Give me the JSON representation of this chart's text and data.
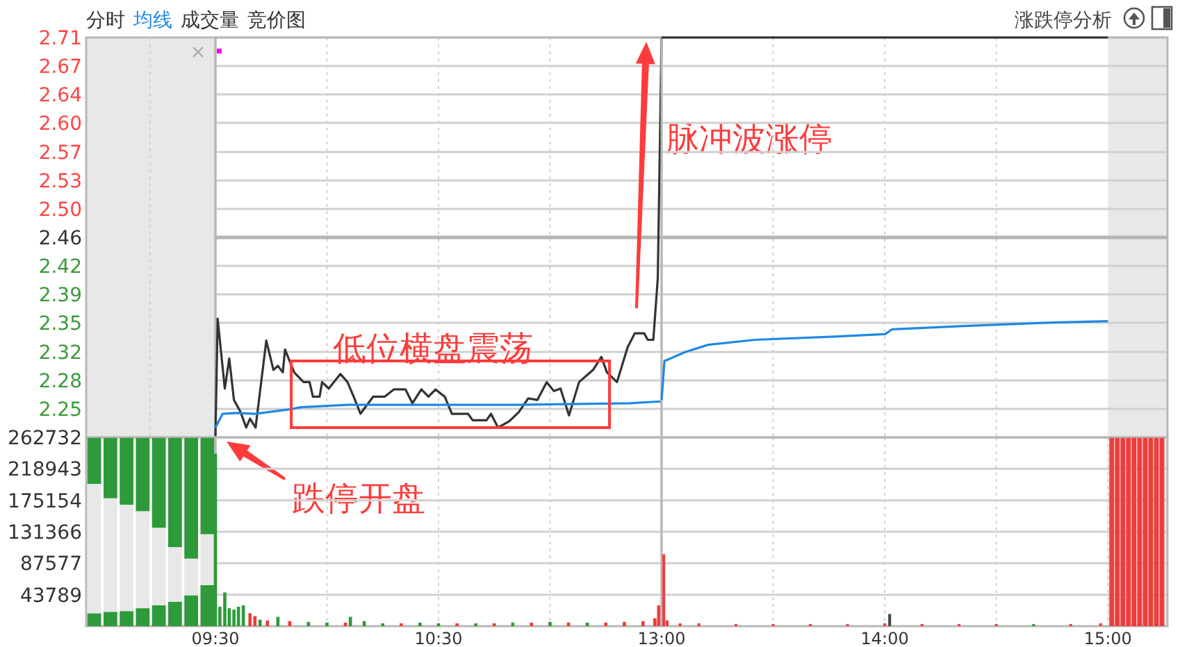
{
  "chart_data": [
    {
      "type": "line",
      "xlim": [
        9.5,
        11.5
      ],
      "ylim": [
        2.214,
        2.706
      ],
      "xticks": [
        {
          "value": 10,
          "label": null
        },
        {
          "value": 10.5,
          "label": null
        },
        {
          "value": 11,
          "label": null
        }
      ],
      "yticks": [
        {
          "value": 2.706,
          "label": "2.71"
        },
        {
          "value": 2.671,
          "label": "2.67"
        },
        {
          "value": 2.636,
          "label": "2.64"
        },
        {
          "value": 2.601,
          "label": "2.60"
        },
        {
          "value": 2.565,
          "label": "2.57"
        },
        {
          "value": 2.53,
          "label": "2.53"
        },
        {
          "value": 2.495,
          "label": "2.50"
        },
        2.46,
        {
          "value": 2.425,
          "label": "2.42"
        },
        2.39,
        {
          "value": 2.355,
          "label": "2.35"
        },
        {
          "value": 2.319,
          "label": "2.32"
        },
        {
          "value": 2.284,
          "label": "2.28"
        },
        {
          "value": 2.249,
          "label": "2.25"
        }
      ],
      "grid": true,
      "tick_labels": "y",
      "ref_lines": [
        {
          "axis": "y",
          "value": 2.46,
          "color": "#b4b4b4"
        }
      ],
      "series": [
        {
          "color": "#333333",
          "x": [
            9.5,
            9.51,
            9.542,
            9.562,
            9.583,
            9.613,
            9.638,
            9.655,
            9.68,
            9.728,
            9.76,
            9.78,
            9.802,
            9.812,
            9.853,
            9.895,
            9.922,
            9.937,
            9.967,
            9.978,
            10.008,
            10.06,
            10.092,
            10.123,
            10.15,
            10.207,
            10.258,
            10.3,
            10.352,
            10.383,
            10.423,
            10.455,
            10.487,
            10.528,
            10.56,
            10.632,
            10.653,
            10.715,
            10.735,
            10.767,
            10.818,
            10.86,
            10.902,
            10.943,
            10.985,
            11.017,
            11.047,
            11.085,
            11.13,
            11.193,
            11.23,
            11.255,
            11.3,
            11.348,
            11.38,
            11.422,
            11.438,
            11.463,
            11.483,
            11.5
          ],
          "values": [
            2.214,
            2.36,
            2.274,
            2.311,
            2.26,
            2.245,
            2.226,
            2.237,
            2.226,
            2.333,
            2.297,
            2.302,
            2.294,
            2.322,
            2.294,
            2.282,
            2.282,
            2.264,
            2.264,
            2.282,
            2.274,
            2.292,
            2.282,
            2.262,
            2.243,
            2.264,
            2.264,
            2.273,
            2.273,
            2.256,
            2.273,
            2.264,
            2.273,
            2.264,
            2.243,
            2.243,
            2.235,
            2.235,
            2.243,
            2.226,
            2.234,
            2.245,
            2.262,
            2.26,
            2.282,
            2.271,
            2.274,
            2.241,
            2.282,
            2.297,
            2.313,
            2.294,
            2.282,
            2.325,
            2.342,
            2.342,
            2.334,
            2.334,
            2.41,
            2.706
          ]
        },
        {
          "color": "#1e88e5",
          "x": [
            9.5,
            9.532,
            9.593,
            9.677,
            9.822,
            9.883,
            10.092,
            10.86,
            11.358,
            11.483,
            11.5
          ],
          "values": [
            2.226,
            2.243,
            2.244,
            2.243,
            2.248,
            2.251,
            2.254,
            2.254,
            2.256,
            2.258,
            2.258
          ]
        }
      ],
      "annotations": [
        "分时",
        "均线",
        "成交量",
        "竞价图",
        "涨跌停分析",
        {
          "text": "低位横盘震荡",
          "x": 10.55,
          "y": 2.267
        },
        {
          "text": "跌停开盘",
          "x": 9.5,
          "y": 2.214
        },
        {
          "text": "脉冲波涨停",
          "x": 11.5,
          "y": 2.706
        }
      ]
    },
    {
      "type": "line",
      "xlim": [
        13,
        15.267
      ],
      "ylim": [
        2.214,
        2.706
      ],
      "xticks": [
        {
          "value": 13.5,
          "label": null
        },
        {
          "value": 14,
          "label": null
        },
        {
          "value": 14.5,
          "label": null
        }
      ],
      "yticks": [
        2.706,
        2.671,
        2.636,
        2.601,
        2.565,
        2.53,
        2.495,
        2.46,
        2.425,
        2.39,
        2.355,
        2.319,
        2.284,
        2.249
      ],
      "grid": true,
      "tick_labels": false,
      "bands": [
        {
          "axis": "x",
          "from": 15,
          "to": 15.267,
          "color": "#e8e8e8"
        }
      ],
      "ref_lines": [
        {
          "axis": "y",
          "value": 2.46,
          "color": "#b4b4b4"
        }
      ],
      "series": [
        {
          "color": "#333333",
          "x": [
            13,
            15
          ],
          "values": [
            2.706,
            2.706
          ]
        },
        {
          "color": "#1e88e5",
          "x": [
            13,
            13.013,
            13.107,
            13.21,
            13.418,
            13.773,
            14.002,
            14.033,
            14.355,
            14.728,
            15
          ],
          "values": [
            2.26,
            2.308,
            2.319,
            2.328,
            2.334,
            2.338,
            2.341,
            2.347,
            2.351,
            2.355,
            2.357
          ]
        }
      ]
    },
    {
      "type": "bar",
      "categories": [
        null,
        null,
        null,
        null,
        null,
        null,
        null,
        null
      ],
      "ylim": [
        0,
        262732
      ],
      "stacked": true,
      "tick_labels": false,
      "series": [
        {
          "color": "#2e9a3a",
          "values": [
            18000,
            20000,
            21000,
            25000,
            29000,
            34000,
            43000,
            57000
          ]
        },
        {
          "color": "#e8e8e8",
          "values": [
            180000,
            158000,
            148000,
            135000,
            108000,
            76000,
            51000,
            71000
          ]
        },
        {
          "color": "#2e9a3a",
          "values": [
            64000,
            84000,
            93000,
            102000,
            125000,
            152000,
            168000,
            134000
          ]
        }
      ]
    },
    {
      "type": "bar",
      "xlim": [
        9.5,
        11.5
      ],
      "ylim": [
        0,
        262732
      ],
      "xticks": [
        {
          "value": 9.5,
          "label": "09:30"
        },
        {
          "value": 10,
          "label": null
        },
        {
          "value": 10.5,
          "label": "10:30"
        },
        {
          "value": 11,
          "label": null
        }
      ],
      "yticks": [
        43789,
        87577,
        131366,
        175154,
        218943,
        262732
      ],
      "grid": true,
      "series": [
        {
          "x": [
            9.5,
            9.52,
            9.542,
            9.562,
            9.583,
            9.603,
            9.625,
            9.655,
            9.677,
            9.7,
            9.733,
            9.78,
            9.833,
            9.917,
            10,
            10.083,
            10.105,
            10.167,
            10.25,
            10.333,
            10.417,
            10.5,
            10.583,
            10.667,
            10.75,
            10.833,
            10.917,
            11,
            11.083,
            11.167,
            11.25,
            11.333,
            11.417,
            11.47,
            11.487
          ],
          "values": [
            240000,
            27000,
            47000,
            25000,
            23000,
            27000,
            29000,
            18000,
            14000,
            9000,
            8000,
            13000,
            7000,
            6000,
            5000,
            5000,
            13000,
            7000,
            4000,
            4000,
            5000,
            4000,
            4000,
            4000,
            4000,
            5000,
            5000,
            6000,
            5000,
            5000,
            5000,
            6000,
            7000,
            11000,
            29000
          ],
          "colors": [
            "#2e9a3a",
            "#2e9a3a",
            "#2e9a3a",
            "#2e9a3a",
            "#2e9a3a",
            "#2e9a3a",
            "#2e9a3a",
            "#f03c3c",
            "#f03c3c",
            "#2e9a3a",
            "#f03c3c",
            "#2e9a3a",
            "#f03c3c",
            "#2e9a3a",
            "#2e9a3a",
            "#f03c3c",
            "#2e9a3a",
            "#2e9a3a",
            "#2e9a3a",
            "#f03c3c",
            "#2e9a3a",
            "#2e9a3a",
            "#f03c3c",
            "#2e9a3a",
            "#f03c3c",
            "#2e9a3a",
            "#f03c3c",
            "#2e9a3a",
            "#f03c3c",
            "#2e9a3a",
            "#f03c3c",
            "#f03c3c",
            "#f03c3c",
            "#f03c3c",
            "#f03c3c"
          ]
        }
      ]
    },
    {
      "type": "bar",
      "xlim": [
        13,
        15.267
      ],
      "ylim": [
        0,
        262732
      ],
      "xticks": [
        {
          "value": 13,
          "label": "13:00"
        },
        {
          "value": 13.5,
          "label": null
        },
        {
          "value": 14,
          "label": "14:00"
        },
        {
          "value": 14.5,
          "label": null
        },
        {
          "value": 15,
          "label": "15:00"
        }
      ],
      "yticks": [
        43789,
        87577,
        131366,
        175154,
        218943,
        262732
      ],
      "grid": true,
      "tick_labels": "x",
      "bands": [
        {
          "axis": "x",
          "from": 15,
          "to": 15.267,
          "color": "#e8e8e8"
        }
      ],
      "series": [
        {
          "x": [
            13.01,
            13.025,
            13.083,
            13.167,
            13.333,
            13.5,
            13.667,
            13.833,
            14,
            14.022,
            14.167,
            14.333,
            14.5,
            14.667,
            14.833,
            14.967
          ],
          "values": [
            100000,
            8000,
            4000,
            4000,
            3000,
            3000,
            3000,
            3000,
            4000,
            17000,
            3000,
            3000,
            3000,
            3000,
            3000,
            4000
          ],
          "colors": [
            "#f03c3c",
            "#f03c3c",
            "#f03c3c",
            "#f03c3c",
            "#f03c3c",
            "#f03c3c",
            "#f03c3c",
            "#f03c3c",
            "#f03c3c",
            "#444444",
            "#f03c3c",
            "#f03c3c",
            "#f03c3c",
            "#2e9a3a",
            "#f03c3c",
            "#f03c3c"
          ]
        },
        {
          "color": "#f03c3c",
          "x": [
            15.017,
            15.042,
            15.067,
            15.092,
            15.117,
            15.142,
            15.167,
            15.192,
            15.217,
            15.242
          ],
          "values": [
            262000,
            262000,
            262000,
            262000,
            262000,
            262000,
            262000,
            262000,
            262000,
            262000
          ]
        }
      ]
    }
  ]
}
